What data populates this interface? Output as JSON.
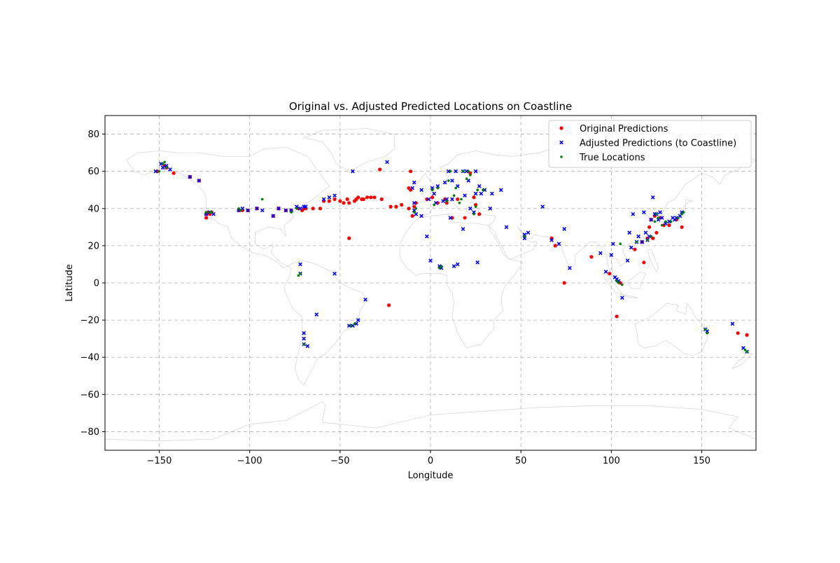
{
  "chart_data": {
    "type": "scatter",
    "title": "Original vs. Adjusted Predicted Locations on Coastline",
    "xlabel": "Longitude",
    "ylabel": "Latitude",
    "xlim": [
      -180,
      180
    ],
    "ylim": [
      -90,
      90
    ],
    "xticks": [
      -150,
      -100,
      -50,
      0,
      50,
      100,
      150
    ],
    "yticks": [
      -80,
      -60,
      -40,
      -20,
      0,
      20,
      40,
      60,
      80
    ],
    "xtick_labels": [
      "−150",
      "−100",
      "−50",
      "0",
      "50",
      "100",
      "150"
    ],
    "ytick_labels": [
      "−80",
      "−60",
      "−40",
      "−20",
      "0",
      "20",
      "40",
      "60",
      "80"
    ],
    "grid": true,
    "legend_position": "top-right",
    "background_map": "world coastlines (light gray)",
    "series": [
      {
        "name": "Original Predictions",
        "marker": "circle",
        "color": "#ff0000",
        "points": [
          [
            -151,
            60
          ],
          [
            -147,
            63
          ],
          [
            -146,
            62
          ],
          [
            -142,
            59
          ],
          [
            -133,
            57
          ],
          [
            -128,
            55
          ],
          [
            -124,
            37
          ],
          [
            -124,
            35
          ],
          [
            -123,
            38
          ],
          [
            -122,
            37
          ],
          [
            -121,
            38
          ],
          [
            -106,
            39
          ],
          [
            -104,
            39
          ],
          [
            -101,
            39
          ],
          [
            -96,
            40
          ],
          [
            -87,
            36
          ],
          [
            -84,
            40
          ],
          [
            -80,
            39
          ],
          [
            -77,
            39
          ],
          [
            -73,
            40
          ],
          [
            -71,
            39
          ],
          [
            -70,
            40
          ],
          [
            -69,
            40
          ],
          [
            -65,
            40
          ],
          [
            -61,
            40
          ],
          [
            -59,
            44
          ],
          [
            -56,
            44
          ],
          [
            -53,
            45
          ],
          [
            -50,
            44
          ],
          [
            -48,
            43
          ],
          [
            -46,
            45
          ],
          [
            -45,
            24
          ],
          [
            -45,
            43
          ],
          [
            -42,
            44
          ],
          [
            -41,
            45
          ],
          [
            -40,
            46
          ],
          [
            -38,
            45
          ],
          [
            -37,
            45
          ],
          [
            -35,
            46
          ],
          [
            -33,
            46
          ],
          [
            -31,
            46
          ],
          [
            -28,
            61
          ],
          [
            -27,
            45
          ],
          [
            -23,
            -12
          ],
          [
            -22,
            41
          ],
          [
            -19,
            41
          ],
          [
            -16,
            42
          ],
          [
            -12,
            51
          ],
          [
            -12,
            40
          ],
          [
            -11,
            60
          ],
          [
            -11,
            50
          ],
          [
            -10,
            36
          ],
          [
            -9,
            41
          ],
          [
            -8,
            43
          ],
          [
            -2,
            45
          ],
          [
            1,
            46
          ],
          [
            4,
            43
          ],
          [
            8,
            45
          ],
          [
            9,
            43
          ],
          [
            12,
            35
          ],
          [
            15,
            45
          ],
          [
            19,
            35
          ],
          [
            22,
            59
          ],
          [
            24,
            46
          ],
          [
            25,
            42
          ],
          [
            27,
            37
          ],
          [
            67,
            24
          ],
          [
            69,
            20
          ],
          [
            74,
            0
          ],
          [
            89,
            14
          ],
          [
            99,
            5
          ],
          [
            103,
            -18
          ],
          [
            105,
            0
          ],
          [
            113,
            18
          ],
          [
            117,
            22
          ],
          [
            118,
            11
          ],
          [
            120,
            24
          ],
          [
            121,
            30
          ],
          [
            122,
            34
          ],
          [
            123,
            24
          ],
          [
            124,
            36
          ],
          [
            125,
            27
          ],
          [
            127,
            35
          ],
          [
            129,
            31
          ],
          [
            132,
            31
          ],
          [
            136,
            34
          ],
          [
            139,
            30
          ],
          [
            170,
            -27
          ],
          [
            175,
            -28
          ]
        ]
      },
      {
        "name": "Adjusted Predictions (to Coastline)",
        "marker": "x",
        "color": "#0000ff",
        "points": [
          [
            -152,
            60
          ],
          [
            -149,
            64
          ],
          [
            -148,
            62
          ],
          [
            -146,
            63
          ],
          [
            -144,
            61
          ],
          [
            -133,
            57
          ],
          [
            -128,
            55
          ],
          [
            -124,
            37
          ],
          [
            -122,
            38
          ],
          [
            -120,
            37
          ],
          [
            -106,
            39
          ],
          [
            -104,
            40
          ],
          [
            -101,
            39
          ],
          [
            -96,
            40
          ],
          [
            -93,
            39
          ],
          [
            -87,
            36
          ],
          [
            -84,
            40
          ],
          [
            -80,
            39
          ],
          [
            -77,
            39
          ],
          [
            -74,
            41
          ],
          [
            -72,
            40
          ],
          [
            -70,
            41
          ],
          [
            -69,
            41
          ],
          [
            -72,
            10
          ],
          [
            -72,
            5
          ],
          [
            -70,
            -27
          ],
          [
            -70,
            -30
          ],
          [
            -70,
            -33
          ],
          [
            -68,
            -34
          ],
          [
            -63,
            -17
          ],
          [
            -59,
            45
          ],
          [
            -56,
            46
          ],
          [
            -53,
            47
          ],
          [
            -53,
            5
          ],
          [
            -45,
            -23
          ],
          [
            -43,
            60
          ],
          [
            -43,
            -23
          ],
          [
            -41,
            -22
          ],
          [
            -40,
            -20
          ],
          [
            -36,
            -9
          ],
          [
            -24,
            65
          ],
          [
            -10,
            51
          ],
          [
            -9,
            54
          ],
          [
            -9,
            43
          ],
          [
            -9,
            39
          ],
          [
            -8,
            37
          ],
          [
            -5,
            50
          ],
          [
            -5,
            36
          ],
          [
            -2,
            25
          ],
          [
            -1,
            45
          ],
          [
            0,
            12
          ],
          [
            1,
            51
          ],
          [
            2,
            48
          ],
          [
            3,
            43
          ],
          [
            4,
            52
          ],
          [
            5,
            9
          ],
          [
            6,
            8
          ],
          [
            7,
            44
          ],
          [
            8,
            54
          ],
          [
            9,
            45
          ],
          [
            10,
            60
          ],
          [
            11,
            35
          ],
          [
            12,
            45
          ],
          [
            12,
            55
          ],
          [
            13,
            9
          ],
          [
            14,
            60
          ],
          [
            15,
            10
          ],
          [
            15,
            52
          ],
          [
            18,
            29
          ],
          [
            18,
            60
          ],
          [
            19,
            47
          ],
          [
            20,
            60
          ],
          [
            21,
            55
          ],
          [
            22,
            40
          ],
          [
            24,
            38
          ],
          [
            25,
            48
          ],
          [
            25,
            60
          ],
          [
            26,
            11
          ],
          [
            27,
            52
          ],
          [
            28,
            48
          ],
          [
            30,
            50
          ],
          [
            33,
            40
          ],
          [
            34,
            48
          ],
          [
            39,
            50
          ],
          [
            42,
            30
          ],
          [
            52,
            26
          ],
          [
            52,
            24
          ],
          [
            54,
            27
          ],
          [
            62,
            41
          ],
          [
            67,
            23
          ],
          [
            71,
            21
          ],
          [
            74,
            29
          ],
          [
            77,
            8
          ],
          [
            94,
            16
          ],
          [
            97,
            6
          ],
          [
            100,
            15
          ],
          [
            101,
            21
          ],
          [
            102,
            3
          ],
          [
            103,
            2
          ],
          [
            104,
            1
          ],
          [
            106,
            -8
          ],
          [
            109,
            12
          ],
          [
            110,
            27
          ],
          [
            111,
            19
          ],
          [
            112,
            37
          ],
          [
            114,
            22
          ],
          [
            115,
            25
          ],
          [
            117,
            22
          ],
          [
            118,
            38
          ],
          [
            119,
            27
          ],
          [
            120,
            23
          ],
          [
            121,
            25
          ],
          [
            122,
            34
          ],
          [
            123,
            46
          ],
          [
            124,
            37
          ],
          [
            125,
            37
          ],
          [
            126,
            34
          ],
          [
            127,
            38
          ],
          [
            128,
            35
          ],
          [
            130,
            32
          ],
          [
            132,
            33
          ],
          [
            134,
            35
          ],
          [
            135,
            34
          ],
          [
            136,
            35
          ],
          [
            138,
            36
          ],
          [
            139,
            38
          ],
          [
            152,
            -25
          ],
          [
            153,
            -26
          ],
          [
            167,
            -22
          ],
          [
            173,
            -35
          ],
          [
            175,
            -37
          ]
        ]
      },
      {
        "name": "True Locations",
        "marker": "dot",
        "color": "#008000",
        "points": [
          [
            -150,
            60
          ],
          [
            -148,
            64
          ],
          [
            -147,
            65
          ],
          [
            -146,
            62
          ],
          [
            -124,
            38
          ],
          [
            -122,
            38
          ],
          [
            -121,
            38
          ],
          [
            -106,
            40
          ],
          [
            -105,
            39
          ],
          [
            -93,
            45
          ],
          [
            -77,
            38
          ],
          [
            -74,
            40
          ],
          [
            -73,
            4
          ],
          [
            -72,
            5
          ],
          [
            -70,
            -33
          ],
          [
            -44,
            -23
          ],
          [
            -42,
            -22
          ],
          [
            -9,
            38
          ],
          [
            -8,
            40
          ],
          [
            1,
            50
          ],
          [
            2,
            42
          ],
          [
            4,
            51
          ],
          [
            5,
            8
          ],
          [
            6,
            9
          ],
          [
            9,
            44
          ],
          [
            10,
            55
          ],
          [
            11,
            60
          ],
          [
            13,
            47
          ],
          [
            14,
            51
          ],
          [
            16,
            43
          ],
          [
            17,
            45
          ],
          [
            18,
            60
          ],
          [
            20,
            56
          ],
          [
            21,
            60
          ],
          [
            22,
            58
          ],
          [
            24,
            37
          ],
          [
            25,
            41
          ],
          [
            26,
            50
          ],
          [
            29,
            50
          ],
          [
            52,
            25
          ],
          [
            103,
            1
          ],
          [
            104,
            0
          ],
          [
            105,
            21
          ],
          [
            106,
            -1
          ],
          [
            114,
            22
          ],
          [
            120,
            23
          ],
          [
            122,
            25
          ],
          [
            124,
            33
          ],
          [
            125,
            37
          ],
          [
            126,
            35
          ],
          [
            128,
            31
          ],
          [
            130,
            33
          ],
          [
            133,
            33
          ],
          [
            137,
            35
          ],
          [
            139,
            37
          ],
          [
            140,
            38
          ],
          [
            152,
            -25
          ],
          [
            153,
            -27
          ],
          [
            174,
            -36
          ],
          [
            175,
            -37
          ]
        ]
      }
    ]
  }
}
